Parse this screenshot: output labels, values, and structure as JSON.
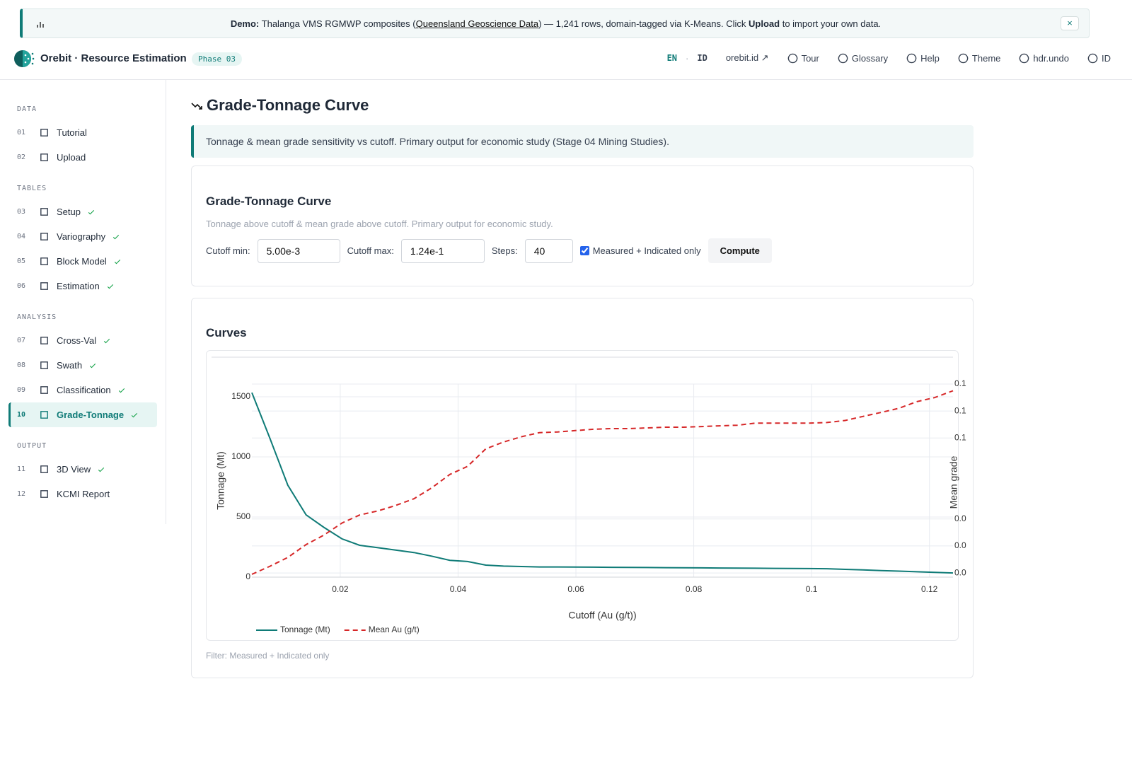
{
  "banner": {
    "label": "Demo:",
    "text_before": "Thalanga VMS RGMWP composites (",
    "link": "Queensland Geoscience Data",
    "text_middle": ") — 1,241 rows, domain-tagged via K-Means. Click ",
    "action": "Upload",
    "text_after": " to import your own data.",
    "close": "×"
  },
  "header": {
    "brand": "Orebit · Resource Estimation",
    "phase": "Phase 03",
    "lang_active": "EN",
    "lang_separator": "·",
    "lang_other": "ID",
    "links": [
      "orebit.id ↗",
      "Tour",
      "Glossary",
      "Help",
      "Theme",
      "hdr.undo",
      "ID"
    ]
  },
  "sidebar": {
    "sections": [
      {
        "title": "DATA",
        "items": [
          {
            "num": "01",
            "label": "Tutorial",
            "done": false
          },
          {
            "num": "02",
            "label": "Upload",
            "done": false
          }
        ]
      },
      {
        "title": "TABLES",
        "items": [
          {
            "num": "03",
            "label": "Setup",
            "done": true
          },
          {
            "num": "04",
            "label": "Variography",
            "done": true
          },
          {
            "num": "05",
            "label": "Block Model",
            "done": true
          },
          {
            "num": "06",
            "label": "Estimation",
            "done": true
          }
        ]
      },
      {
        "title": "ANALYSIS",
        "items": [
          {
            "num": "07",
            "label": "Cross-Val",
            "done": true
          },
          {
            "num": "08",
            "label": "Swath",
            "done": true
          },
          {
            "num": "09",
            "label": "Classification",
            "done": true
          },
          {
            "num": "10",
            "label": "Grade-Tonnage",
            "done": true,
            "active": true
          }
        ]
      },
      {
        "title": "OUTPUT",
        "items": [
          {
            "num": "11",
            "label": "3D View",
            "done": true
          },
          {
            "num": "12",
            "label": "KCMI Report",
            "done": false
          }
        ]
      }
    ]
  },
  "page": {
    "title": "Grade-Tonnage Curve",
    "info": "Tonnage & mean grade sensitivity vs cutoff. Primary output for economic study (Stage 04 Mining Studies)."
  },
  "form_card": {
    "title": "Grade-Tonnage Curve",
    "description": "Tonnage above cutoff & mean grade above cutoff. Primary output for economic study.",
    "fields": [
      {
        "label": "Cutoff min:",
        "value": "5.00e-3"
      },
      {
        "label": "Cutoff max:",
        "value": "1.24e-1"
      },
      {
        "label": "Steps:",
        "value": "40"
      }
    ],
    "checkbox": {
      "label": "Measured + Indicated only",
      "checked": true
    },
    "button": "Compute"
  },
  "chart_card": {
    "title": "Curves",
    "footer": "Filter: Measured + Indicated only"
  },
  "chart_data": {
    "type": "line",
    "x_label": "Cutoff (Au (g/t))",
    "y_label": "Tonnage (Mt)",
    "y2_label": "Mean grade",
    "x": [
      0.005,
      0.0081,
      0.0111,
      0.0142,
      0.0172,
      0.0203,
      0.0233,
      0.0264,
      0.0294,
      0.0325,
      0.0355,
      0.0386,
      0.0416,
      0.0447,
      0.0477,
      0.0508,
      0.0538,
      0.0569,
      0.0599,
      0.063,
      0.066,
      0.0691,
      0.0721,
      0.0752,
      0.0782,
      0.0813,
      0.0843,
      0.0874,
      0.0904,
      0.0935,
      0.0965,
      0.0996,
      0.1026,
      0.1057,
      0.1087,
      0.1118,
      0.1148,
      0.1179,
      0.1209,
      0.124
    ],
    "xlim": [
      0.005,
      0.124
    ],
    "xticks": [
      0.02,
      0.04,
      0.06,
      0.08,
      0.1,
      0.12
    ],
    "ylim": [
      0,
      1606
    ],
    "yticks": [
      0,
      500,
      1000,
      1500
    ],
    "y2lim": [
      0.0169,
      0.16
    ],
    "y2ticks": [
      {
        "value": 0.02,
        "label": "0.0"
      },
      {
        "value": 0.04,
        "label": "0.0"
      },
      {
        "value": 0.06,
        "label": "0.0"
      },
      {
        "value": 0.12,
        "label": "0.1"
      },
      {
        "value": 0.14,
        "label": "0.1"
      },
      {
        "value": 0.16,
        "label": "0.1"
      }
    ],
    "grid": true,
    "legend": "bottom-left",
    "series": [
      {
        "name": "Tonnage (Mt)",
        "color": "#0f7b77",
        "dash": false,
        "values": [
          1535,
          1150,
          765,
          518,
          415,
          318,
          265,
          245,
          225,
          205,
          175,
          140,
          130,
          100,
          92,
          88,
          85,
          85,
          84,
          83,
          82,
          81,
          80,
          79,
          78,
          77,
          76,
          75,
          74,
          73,
          72,
          71,
          70,
          65,
          60,
          55,
          50,
          45,
          40,
          35
        ]
      },
      {
        "name": "Mean Au (g/t)",
        "color": "#d62728",
        "dash": true,
        "axis": "y2",
        "values": [
          0.019,
          0.025,
          0.0315,
          0.041,
          0.048,
          0.057,
          0.063,
          0.066,
          0.07,
          0.075,
          0.083,
          0.093,
          0.099,
          0.112,
          0.117,
          0.121,
          0.124,
          0.1245,
          0.1255,
          0.1265,
          0.127,
          0.127,
          0.1275,
          0.128,
          0.128,
          0.1285,
          0.129,
          0.1295,
          0.131,
          0.131,
          0.131,
          0.131,
          0.1315,
          0.133,
          0.136,
          0.139,
          0.142,
          0.147,
          0.15,
          0.155
        ]
      }
    ]
  }
}
